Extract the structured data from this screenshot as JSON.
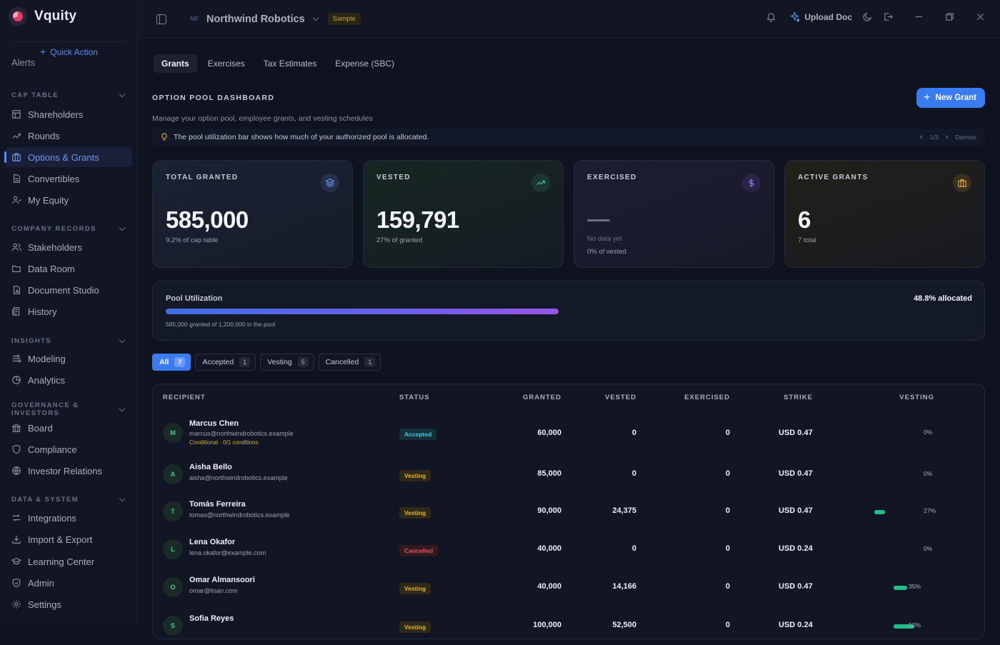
{
  "brand": {
    "name": "Vquity"
  },
  "sidebar": {
    "quick_action": "Quick Action",
    "ghost_item": "Alerts",
    "sections": [
      {
        "title": "CAP TABLE",
        "items": [
          "Shareholders",
          "Rounds",
          "Options & Grants",
          "Convertibles",
          "My Equity"
        ]
      },
      {
        "title": "COMPANY RECORDS",
        "items": [
          "Stakeholders",
          "Data Room",
          "Document Studio",
          "History"
        ]
      },
      {
        "title": "INSIGHTS",
        "items": [
          "Modeling",
          "Analytics"
        ]
      },
      {
        "title": "GOVERNANCE & INVESTORS",
        "items": [
          "Board",
          "Compliance",
          "Investor Relations"
        ]
      },
      {
        "title": "DATA & SYSTEM",
        "items": [
          "Integrations",
          "Import & Export",
          "Learning Center",
          "Admin",
          "Settings"
        ]
      }
    ],
    "active_item": "Options & Grants"
  },
  "topbar": {
    "company_initials": "NR",
    "company_name": "Northwind Robotics",
    "sample_label": "Sample",
    "upload_label": "Upload Doc"
  },
  "tabs": [
    "Grants",
    "Exercises",
    "Tax Estimates",
    "Expense (SBC)"
  ],
  "header": {
    "title": "OPTION POOL DASHBOARD",
    "subtitle": "Manage your option pool, employee grants, and vesting schedules",
    "new_grant_label": "New Grant"
  },
  "tip": {
    "text": "The pool utilization bar shows how much of your authorized pool is allocated.",
    "page": "1/3",
    "dismiss": "Dismiss"
  },
  "cards": {
    "total_granted": {
      "label": "TOTAL GRANTED",
      "value": "585,000",
      "sub": "9.2% of cap table"
    },
    "vested": {
      "label": "VESTED",
      "value": "159,791",
      "sub": "27% of granted"
    },
    "exercised": {
      "label": "EXERCISED",
      "sub": "No data yet",
      "sub2": "0% of vested"
    },
    "active_grants": {
      "label": "ACTIVE GRANTS",
      "value": "6",
      "sub": "7 total"
    }
  },
  "pool": {
    "label": "Pool Utilization",
    "allocated_text": "48.8% allocated",
    "allocated_fraction": 0.488,
    "note": "585,000 granted of 1,200,000 in the pool"
  },
  "filters": [
    {
      "label": "All",
      "count": "7"
    },
    {
      "label": "Accepted",
      "count": "1"
    },
    {
      "label": "Vesting",
      "count": "5"
    },
    {
      "label": "Cancelled",
      "count": "1"
    }
  ],
  "table": {
    "headers": {
      "recipient": "RECIPIENT",
      "status": "STATUS",
      "granted": "GRANTED",
      "vested": "VESTED",
      "exercised": "EXERCISED",
      "strike": "STRIKE",
      "vesting": "VESTING"
    },
    "rows": [
      {
        "initial": "M",
        "name": "Marcus Chen",
        "email": "marcus@northwindrobotics.example",
        "condition": "Conditional · 0/1 conditions",
        "status": "Accepted",
        "granted": "60,000",
        "vested": "0",
        "exercised": "0",
        "strike": "USD 0.47",
        "vesting_pct": "0%",
        "vesting_fraction": 0
      },
      {
        "initial": "A",
        "name": "Aisha Bello",
        "email": "aisha@northwindrobotics.example",
        "status": "Vesting",
        "granted": "85,000",
        "vested": "0",
        "exercised": "0",
        "strike": "USD 0.47",
        "vesting_pct": "0%",
        "vesting_fraction": 0
      },
      {
        "initial": "T",
        "name": "Tomás Ferreira",
        "email": "tomas@northwindrobotics.example",
        "status": "Vesting",
        "granted": "90,000",
        "vested": "24,375",
        "exercised": "0",
        "strike": "USD 0.47",
        "vesting_pct": "27%",
        "vesting_fraction": 0.27
      },
      {
        "initial": "L",
        "name": "Lena Okafor",
        "email": "lena.okafor@example.com",
        "status": "Cancelled",
        "granted": "40,000",
        "vested": "0",
        "exercised": "0",
        "strike": "USD 0.24",
        "vesting_pct": "0%",
        "vesting_fraction": 0
      },
      {
        "initial": "O",
        "name": "Omar Almansoori",
        "email": "omar@lisan.com",
        "status": "Vesting",
        "granted": "40,000",
        "vested": "14,166",
        "exercised": "0",
        "strike": "USD 0.47",
        "vesting_pct": "35%",
        "vesting_fraction": 0.35
      },
      {
        "initial": "S",
        "name": "Sofia Reyes",
        "status": "Vesting",
        "granted": "100,000",
        "vested": "52,500",
        "exercised": "0",
        "strike": "USD 0.24",
        "vesting_pct": "52%",
        "vesting_fraction": 0.52
      }
    ]
  }
}
